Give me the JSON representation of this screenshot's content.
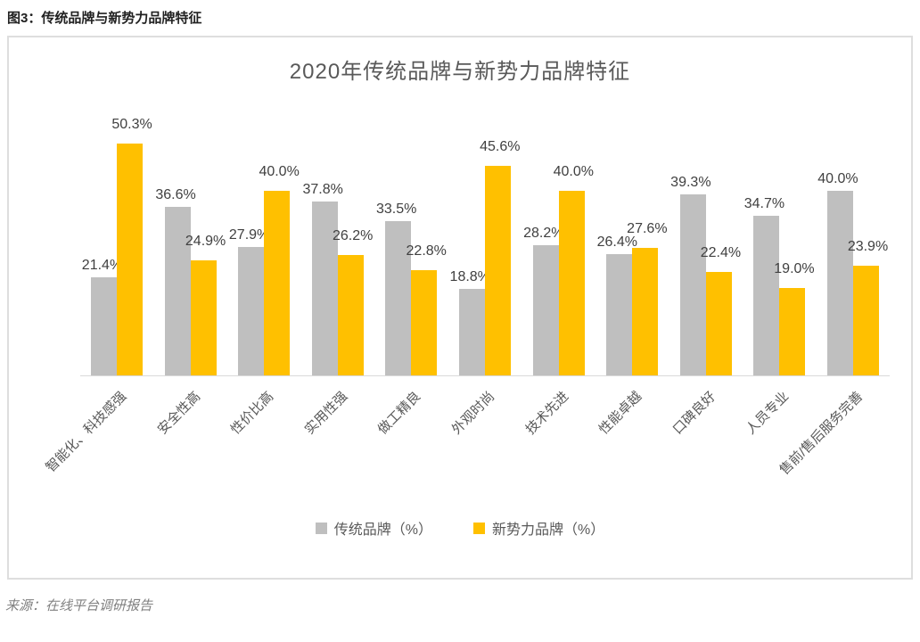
{
  "figure": {
    "title": "图3：传统品牌与新势力品牌特征"
  },
  "source": {
    "text": "来源：在线平台调研报告"
  },
  "chart_data": {
    "type": "bar",
    "title": "2020年传统品牌与新势力品牌特征",
    "categories": [
      "智能化、科技感强",
      "安全性高",
      "性价比高",
      "实用性强",
      "做工精良",
      "外观时尚",
      "技术先进",
      "性能卓越",
      "口碑良好",
      "人员专业",
      "售前/售后服务完善"
    ],
    "series": [
      {
        "name": "传统品牌（%）",
        "color": "#BFBFBF",
        "values": [
          21.4,
          36.6,
          27.9,
          37.8,
          33.5,
          18.8,
          28.2,
          26.4,
          39.3,
          34.7,
          40.0
        ]
      },
      {
        "name": "新势力品牌（%）",
        "color": "#FFC000",
        "values": [
          50.3,
          24.9,
          40.0,
          26.2,
          22.8,
          45.6,
          40.0,
          27.6,
          22.4,
          19.0,
          23.9
        ]
      }
    ],
    "ylim": [
      0,
      55
    ],
    "value_suffix": "%",
    "data_labels": true,
    "grid": false,
    "legend_position": "bottom",
    "colors": {
      "title": "#595959",
      "data_label": "#404040",
      "category_label": "#595959",
      "axis_line": "#D9D9D9"
    }
  }
}
